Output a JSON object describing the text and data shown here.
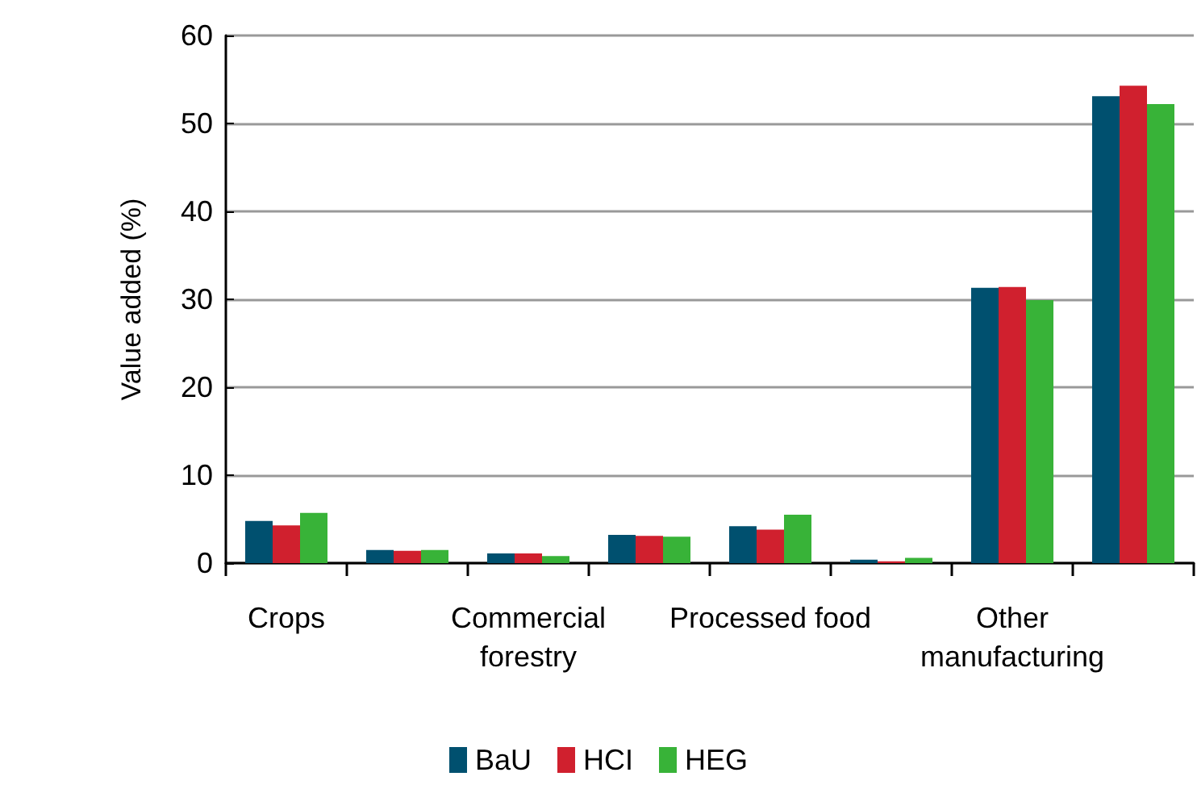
{
  "chart_data": {
    "type": "bar",
    "ylabel": "Value added (%)",
    "categories": [
      "Crops",
      null,
      "Commercial\nforestry",
      null,
      "Processed food",
      null,
      "Other\nmanufacturing",
      null
    ],
    "series": [
      {
        "name": "BaU",
        "color": "#00506f",
        "values": [
          4.8,
          1.5,
          1.1,
          3.2,
          4.2,
          0.4,
          31.3,
          53.1
        ]
      },
      {
        "name": "HCI",
        "color": "#d0202e",
        "values": [
          4.3,
          1.4,
          1.1,
          3.1,
          3.8,
          0.2,
          31.4,
          54.3
        ]
      },
      {
        "name": "HEG",
        "color": "#38b338",
        "values": [
          5.7,
          1.5,
          0.8,
          3.0,
          5.5,
          0.6,
          29.9,
          52.2
        ]
      }
    ],
    "ylim": [
      0,
      60
    ],
    "yticks": [
      0,
      10,
      20,
      30,
      40,
      50,
      60
    ],
    "grid": "y",
    "legend": "bottom"
  }
}
